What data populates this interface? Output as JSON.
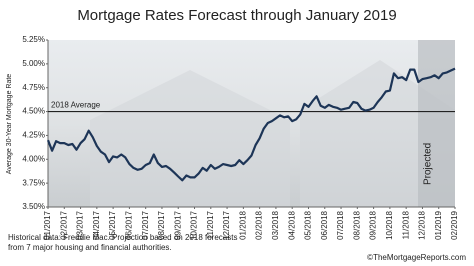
{
  "chart_data": {
    "type": "line",
    "title": "Mortgage Rates Forecast through January 2019",
    "y_label": "Average 30-Year Mortgage Rate",
    "categories": [
      "01/2017",
      null,
      null,
      null,
      "02/2017",
      null,
      null,
      null,
      "03/2017",
      null,
      null,
      null,
      "04/2017",
      null,
      null,
      null,
      "05/2017",
      null,
      null,
      null,
      "06/2017",
      null,
      null,
      null,
      "07/2017",
      null,
      null,
      null,
      "08/2017",
      null,
      null,
      null,
      "09/2017",
      null,
      null,
      null,
      "10/2017",
      null,
      null,
      null,
      "11/2017",
      null,
      null,
      null,
      "12/2017",
      null,
      null,
      null,
      "01/2018",
      null,
      null,
      null,
      "02/2018",
      null,
      null,
      null,
      "03/2018",
      null,
      null,
      null,
      "04/2018",
      null,
      null,
      null,
      "05/2018",
      null,
      null,
      null,
      "06/2018",
      null,
      null,
      null,
      "07/2018",
      null,
      null,
      null,
      "08/2018",
      null,
      null,
      null,
      "09/2018",
      null,
      null,
      null,
      "10/2018",
      null,
      null,
      null,
      "11/2018",
      null,
      null,
      null,
      "12/2018",
      null,
      null,
      null,
      "01/2019",
      null,
      null,
      null,
      "02/2019"
    ],
    "series": [
      {
        "name": "Mortgage rate",
        "color": "#1d3557",
        "values": [
          4.2,
          4.09,
          4.19,
          4.17,
          4.17,
          4.15,
          4.16,
          4.1,
          4.17,
          4.21,
          4.3,
          4.23,
          4.14,
          4.08,
          4.05,
          3.97,
          4.03,
          4.02,
          4.05,
          4.02,
          3.95,
          3.91,
          3.89,
          3.9,
          3.94,
          3.96,
          4.05,
          3.96,
          3.92,
          3.93,
          3.9,
          3.86,
          3.82,
          3.78,
          3.83,
          3.81,
          3.81,
          3.85,
          3.91,
          3.88,
          3.94,
          3.9,
          3.92,
          3.95,
          3.94,
          3.93,
          3.94,
          3.99,
          3.95,
          3.99,
          4.04,
          4.15,
          4.22,
          4.32,
          4.38,
          4.4,
          4.43,
          4.46,
          4.44,
          4.45,
          4.4,
          4.42,
          4.47,
          4.58,
          4.55,
          4.61,
          4.66,
          4.56,
          4.54,
          4.57,
          4.55,
          4.54,
          4.52,
          4.53,
          4.54,
          4.6,
          4.59,
          4.53,
          4.51,
          4.52,
          4.54,
          4.6,
          4.65,
          4.71,
          4.72,
          4.9,
          4.85,
          4.86,
          4.83,
          4.94,
          4.94,
          4.81,
          4.84,
          4.85,
          4.86,
          4.88,
          4.85,
          4.9,
          4.91,
          4.93,
          4.95
        ]
      }
    ],
    "ylim": [
      3.5,
      5.25
    ],
    "yticks": [
      {
        "value": 3.5,
        "label": "3.50%"
      },
      {
        "value": 3.75,
        "label": "3.75%"
      },
      {
        "value": 4.0,
        "label": "4.00%"
      },
      {
        "value": 4.25,
        "label": "4.25%"
      },
      {
        "value": 4.5,
        "label": "4.50%"
      },
      {
        "value": 4.75,
        "label": "4.75%"
      },
      {
        "value": 5.0,
        "label": "5.00%"
      },
      {
        "value": 5.25,
        "label": "5.25%"
      }
    ],
    "average": {
      "value": 4.5,
      "label": "2018 Average"
    },
    "annotation": "Projected",
    "footnote": [
      "Historical data: Freddie Mac. Projection based on 2018 forecasts",
      "from 7 major housing and financial authorities."
    ],
    "credit": "©TheMortgageReports.com"
  }
}
